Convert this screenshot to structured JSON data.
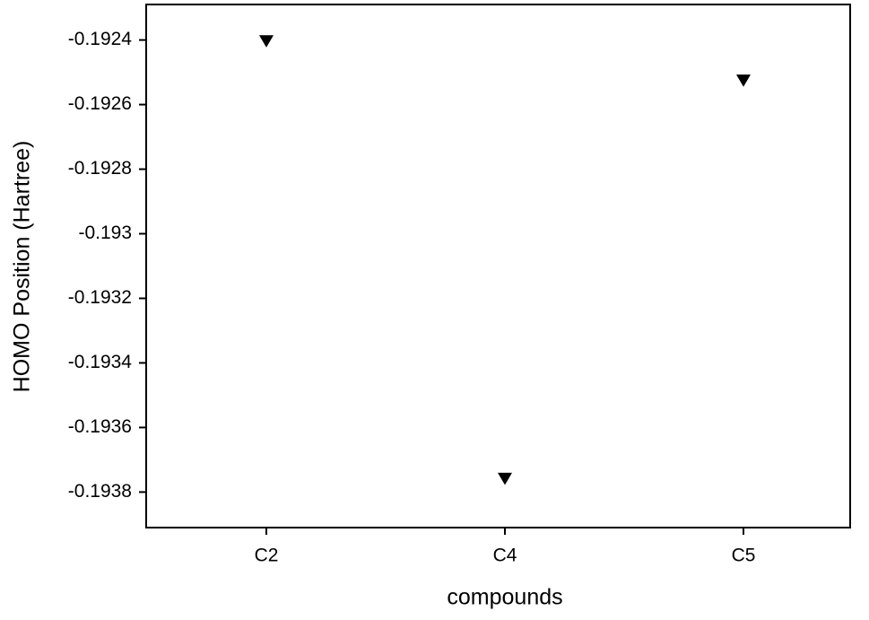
{
  "chart_data": {
    "type": "scatter",
    "xlabel": "compounds",
    "ylabel": "HOMO Position (Hartree)",
    "categories": [
      "C2",
      "C4",
      "C5"
    ],
    "values": [
      -0.192403,
      -0.193758,
      -0.192525
    ],
    "color": "#000000",
    "marker": "triangle-down",
    "ylim": [
      -0.19391,
      -0.19229
    ],
    "yticks": [
      -0.1924,
      -0.1926,
      -0.1928,
      -0.193,
      -0.1932,
      -0.1934,
      -0.1936,
      -0.1938
    ],
    "grid": false
  }
}
